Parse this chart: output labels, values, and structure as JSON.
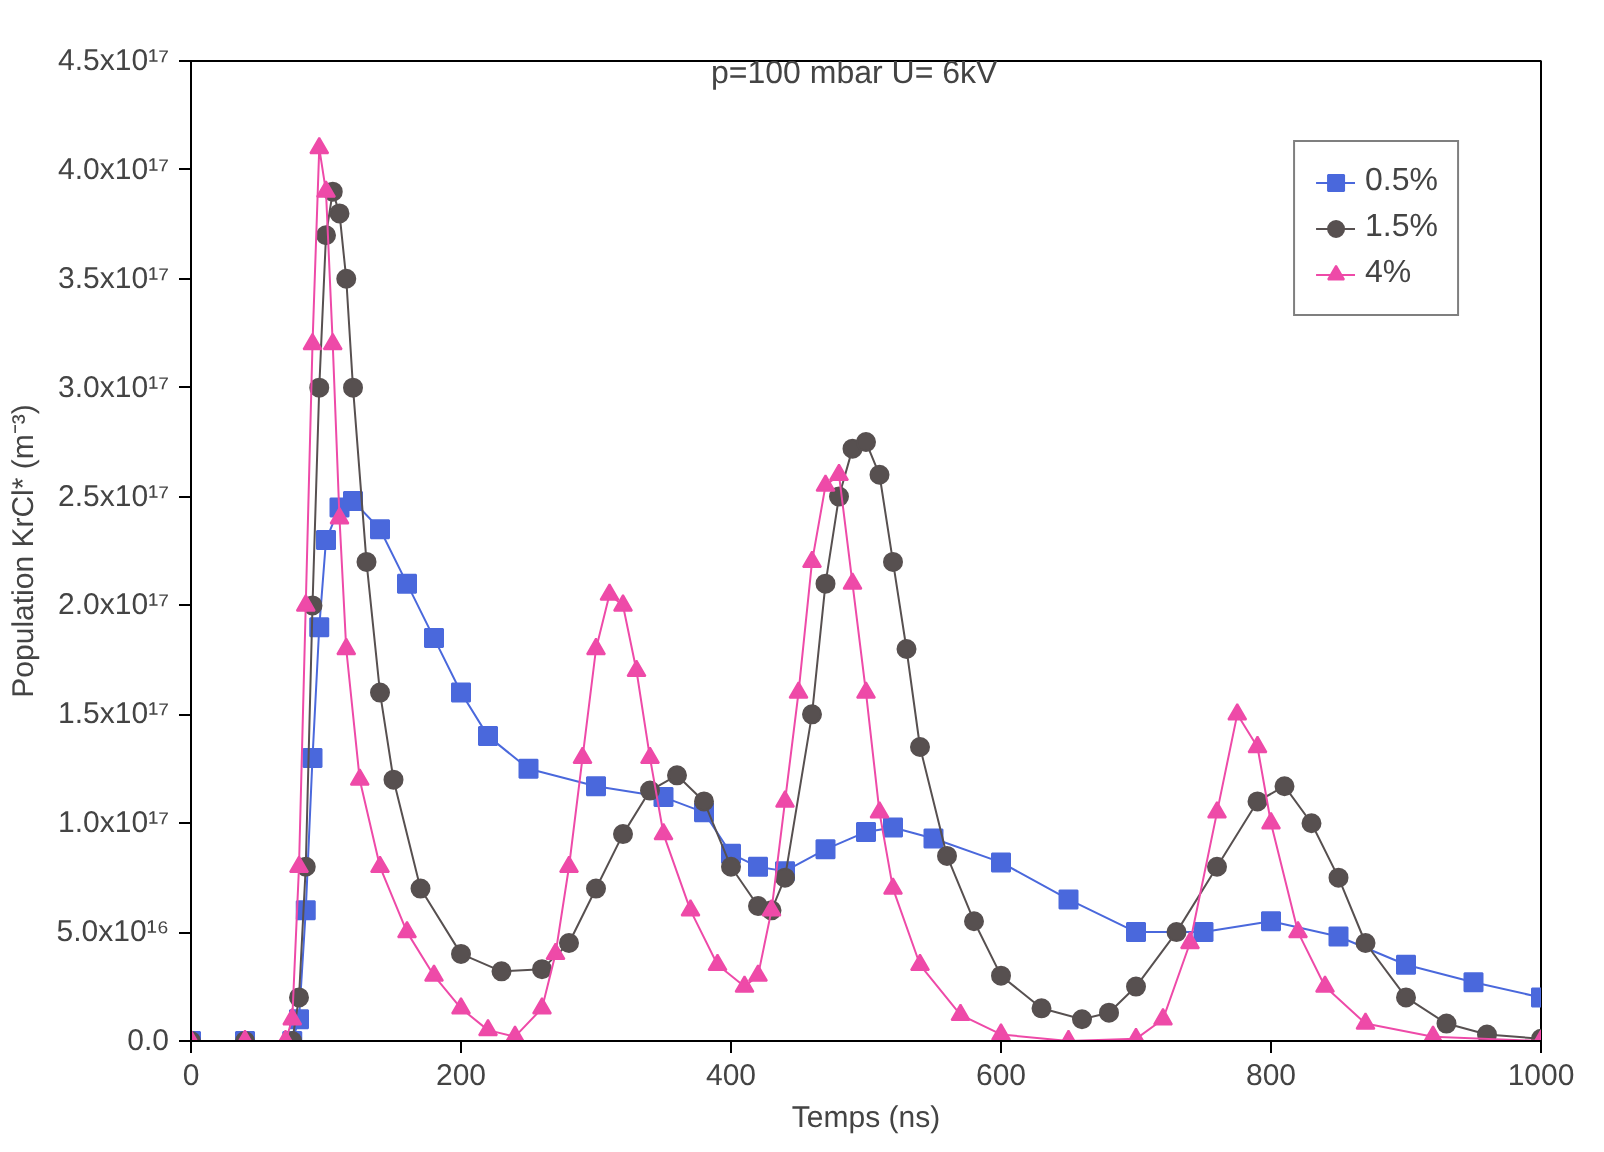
{
  "chart_data": {
    "type": "line",
    "xlabel": "Temps (ns)",
    "ylabel": "Population KrCl* (m⁻³)",
    "annotations": [
      "p=100 mbar U= 6kV"
    ],
    "xlim": [
      0,
      1000
    ],
    "xticks": [
      0,
      200,
      400,
      600,
      800,
      1000
    ],
    "ylim": [
      0,
      4.5e+17
    ],
    "yticks": [
      {
        "value": 0,
        "label": "0.0"
      },
      {
        "value": 5e+16,
        "label": "5.0x10¹⁶"
      },
      {
        "value": 1e+17,
        "label": "1.0x10¹⁷"
      },
      {
        "value": 1.5e+17,
        "label": "1.5x10¹⁷"
      },
      {
        "value": 2e+17,
        "label": "2.0x10¹⁷"
      },
      {
        "value": 2.5e+17,
        "label": "2.5x10¹⁷"
      },
      {
        "value": 3e+17,
        "label": "3.0x10¹⁷"
      },
      {
        "value": 3.5e+17,
        "label": "3.5x10¹⁷"
      },
      {
        "value": 4e+17,
        "label": "4.0x10¹⁷"
      },
      {
        "value": 4.5e+17,
        "label": "4.5x10¹⁷"
      }
    ],
    "grid": false,
    "legend": "top right",
    "line_style": "solid",
    "series": [
      {
        "name": "0.5%",
        "color": "#4a68dc",
        "marker": "square",
        "x": [
          0,
          40,
          75,
          80,
          85,
          90,
          95,
          100,
          110,
          120,
          140,
          160,
          180,
          200,
          220,
          250,
          300,
          350,
          380,
          400,
          420,
          440,
          470,
          500,
          520,
          550,
          600,
          650,
          700,
          750,
          800,
          850,
          900,
          950,
          1000
        ],
        "values": [
          0,
          0,
          0,
          1e+16,
          6e+16,
          1.3e+17,
          1.9e+17,
          2.3e+17,
          2.45e+17,
          2.48e+17,
          2.35e+17,
          2.1e+17,
          1.85e+17,
          1.6e+17,
          1.4e+17,
          1.25e+17,
          1.17e+17,
          1.12e+17,
          1.05e+17,
          8.6e+16,
          8e+16,
          7.8e+16,
          8.8e+16,
          9.6e+16,
          9.8e+16,
          9.3e+16,
          8.2e+16,
          6.5e+16,
          5e+16,
          5e+16,
          5.5e+16,
          4.8e+16,
          3.5e+16,
          2.7e+16,
          2e+16
        ]
      },
      {
        "name": "1.5%",
        "color": "#575050",
        "marker": "circle",
        "x": [
          0,
          40,
          75,
          80,
          85,
          90,
          95,
          100,
          105,
          110,
          115,
          120,
          130,
          140,
          150,
          170,
          200,
          230,
          260,
          280,
          300,
          320,
          340,
          360,
          380,
          400,
          420,
          430,
          440,
          460,
          470,
          480,
          490,
          500,
          510,
          520,
          530,
          540,
          560,
          580,
          600,
          630,
          660,
          680,
          700,
          730,
          760,
          790,
          810,
          830,
          850,
          870,
          900,
          930,
          960,
          1000
        ],
        "values": [
          0,
          0,
          0,
          2e+16,
          8e+16,
          2e+17,
          3e+17,
          3.7e+17,
          3.9e+17,
          3.8e+17,
          3.5e+17,
          3e+17,
          2.2e+17,
          1.6e+17,
          1.2e+17,
          7e+16,
          4e+16,
          3.2e+16,
          3.3e+16,
          4.5e+16,
          7e+16,
          9.5e+16,
          1.15e+17,
          1.22e+17,
          1.1e+17,
          8e+16,
          6.2e+16,
          6e+16,
          7.5e+16,
          1.5e+17,
          2.1e+17,
          2.5e+17,
          2.72e+17,
          2.75e+17,
          2.6e+17,
          2.2e+17,
          1.8e+17,
          1.35e+17,
          8.5e+16,
          5.5e+16,
          3e+16,
          1.5e+16,
          1e+16,
          1.3e+16,
          2.5e+16,
          5e+16,
          8e+16,
          1.1e+17,
          1.17e+17,
          1e+17,
          7.5e+16,
          4.5e+16,
          2e+16,
          8000000000000000.0,
          3000000000000000.0,
          1000000000000000.0
        ]
      },
      {
        "name": "4%",
        "color": "#ee4aa8",
        "marker": "triangle",
        "x": [
          0,
          40,
          70,
          75,
          80,
          85,
          90,
          95,
          100,
          105,
          110,
          115,
          125,
          140,
          160,
          180,
          200,
          220,
          240,
          260,
          270,
          280,
          290,
          300,
          310,
          320,
          330,
          340,
          350,
          370,
          390,
          410,
          420,
          430,
          440,
          450,
          460,
          470,
          480,
          490,
          500,
          510,
          520,
          540,
          570,
          600,
          650,
          700,
          720,
          740,
          760,
          775,
          790,
          800,
          820,
          840,
          870,
          920,
          1000
        ],
        "values": [
          0,
          0,
          0,
          1e+16,
          8e+16,
          2e+17,
          3.2e+17,
          4.1e+17,
          3.9e+17,
          3.2e+17,
          2.4e+17,
          1.8e+17,
          1.2e+17,
          8e+16,
          5e+16,
          3e+16,
          1.5e+16,
          5000000000000000.0,
          2000000000000000.0,
          1.5e+16,
          4e+16,
          8e+16,
          1.3e+17,
          1.8e+17,
          2.05e+17,
          2e+17,
          1.7e+17,
          1.3e+17,
          9.5e+16,
          6e+16,
          3.5e+16,
          2.5e+16,
          3e+16,
          6e+16,
          1.1e+17,
          1.6e+17,
          2.2e+17,
          2.55e+17,
          2.6e+17,
          2.1e+17,
          1.6e+17,
          1.05e+17,
          7e+16,
          3.5e+16,
          1.2e+16,
          3000000000000000.0,
          0,
          1000000000000000.0,
          1e+16,
          4.5e+16,
          1.05e+17,
          1.5e+17,
          1.35e+17,
          1e+17,
          5e+16,
          2.5e+16,
          8000000000000000.0,
          2000000000000000.0,
          0
        ]
      }
    ]
  }
}
